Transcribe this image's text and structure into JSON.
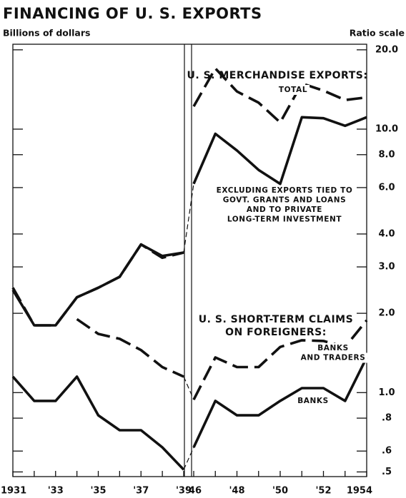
{
  "chart_data": {
    "type": "line",
    "title": "FINANCING OF U. S. EXPORTS",
    "y_axis_label": "Billions of dollars",
    "scale_label": "Ratio scale",
    "log_scale": true,
    "x": [
      1931,
      1932,
      1933,
      1934,
      1935,
      1936,
      1937,
      1938,
      1939,
      1946,
      1947,
      1948,
      1949,
      1950,
      1951,
      1952,
      1953,
      1954
    ],
    "xlim": [
      1931,
      1954
    ],
    "xbreak": [
      1939,
      1946
    ],
    "xticks": [
      {
        "value": 1931,
        "label": "1931"
      },
      {
        "value": 1933,
        "label": "'33"
      },
      {
        "value": 1935,
        "label": "'35"
      },
      {
        "value": 1937,
        "label": "'37"
      },
      {
        "value": 1939,
        "label": "'39"
      },
      {
        "value": 1946,
        "label": "'46"
      },
      {
        "value": 1948,
        "label": "'48"
      },
      {
        "value": 1950,
        "label": "'50"
      },
      {
        "value": 1952,
        "label": "'52"
      },
      {
        "value": 1954,
        "label": "1954"
      }
    ],
    "ylim": [
      0.48,
      21
    ],
    "yticks": [
      {
        "value": 20,
        "label": "20.0"
      },
      {
        "value": 10,
        "label": "10.0"
      },
      {
        "value": 8,
        "label": "8.0"
      },
      {
        "value": 6,
        "label": "6.0"
      },
      {
        "value": 4,
        "label": "4.0"
      },
      {
        "value": 3,
        "label": "3.0"
      },
      {
        "value": 2,
        "label": "2.0"
      },
      {
        "value": 1,
        "label": "1.0"
      },
      {
        "value": 0.8,
        "label": ".8"
      },
      {
        "value": 0.6,
        "label": ".6"
      },
      {
        "value": 0.5,
        "label": ".5"
      }
    ],
    "annotations": [
      {
        "lines": [
          "U. S. MERCHANDISE EXPORTS:"
        ]
      },
      {
        "lines": [
          "U. S. SHORT-TERM CLAIMS",
          "ON FOREIGNERS:"
        ]
      }
    ],
    "series": [
      {
        "name": [
          "TOTAL"
        ],
        "color": "#111111",
        "dashed": true,
        "bridged": false,
        "values": [
          2.5,
          1.8,
          1.8,
          2.3,
          2.5,
          2.75,
          3.65,
          3.25,
          3.4,
          12.2,
          17.0,
          13.9,
          12.6,
          10.6,
          14.9,
          14.0,
          12.9,
          13.2
        ]
      },
      {
        "name": [
          "EXCLUDING EXPORTS TIED TO",
          "GOVT. GRANTS AND LOANS",
          "AND TO PRIVATE",
          "LONG-TERM INVESTMENT"
        ],
        "color": "#111111",
        "dashed": false,
        "bridged": true,
        "values": [
          2.45,
          1.8,
          1.8,
          2.3,
          2.5,
          2.75,
          3.65,
          3.3,
          3.4,
          6.2,
          9.6,
          8.3,
          7.0,
          6.2,
          11.1,
          11.0,
          10.3,
          11.1
        ]
      },
      {
        "name": [
          "BANKS",
          "AND TRADERS"
        ],
        "color": "#111111",
        "dashed": true,
        "bridged": true,
        "values": [
          null,
          null,
          null,
          1.9,
          1.67,
          1.6,
          1.45,
          1.25,
          1.15,
          0.94,
          1.36,
          1.25,
          1.25,
          1.49,
          1.58,
          1.57,
          1.49,
          1.88
        ]
      },
      {
        "name": [
          "BANKS"
        ],
        "color": "#111111",
        "dashed": false,
        "bridged": true,
        "values": [
          1.15,
          0.93,
          0.93,
          1.15,
          0.82,
          0.72,
          0.72,
          0.62,
          0.51,
          0.62,
          0.93,
          0.82,
          0.82,
          0.93,
          1.04,
          1.04,
          0.93,
          1.36
        ]
      }
    ]
  }
}
